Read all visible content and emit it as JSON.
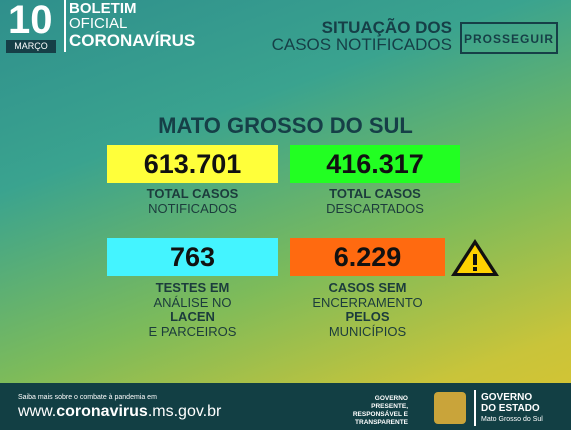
{
  "header": {
    "day": "10",
    "month": "MARÇO",
    "title": [
      "BOLETIM",
      "OFICIAL",
      "CORONAVÍRUS"
    ],
    "situation": [
      "SITUAÇÃO DOS",
      "CASOS NOTIFICADOS"
    ],
    "logo": "PROSSEGUIR"
  },
  "region": "MATO GROSSO DO SUL",
  "cards": [
    {
      "value": "613.701",
      "label": [
        "TOTAL CASOS",
        "NOTIFICADOS"
      ]
    },
    {
      "value": "416.317",
      "label": [
        "TOTAL CASOS",
        "DESCARTADOS"
      ]
    },
    {
      "value": "763",
      "label": [
        "TESTES EM",
        "ANÁLISE NO",
        "LACEN",
        "E PARCEIROS"
      ]
    },
    {
      "value": "6.229",
      "label": [
        "CASOS SEM",
        "ENCERRAMENTO",
        "PELOS",
        "MUNICÍPIOS"
      ]
    }
  ],
  "footer": {
    "note": "Saiba mais sobre o combate à pandemia em",
    "url": [
      "www.",
      "coronavirus",
      ".ms.gov.br"
    ],
    "motto": [
      "GOVERNO",
      "PRESENTE,",
      "RESPONSÁVEL E",
      "TRANSPARENTE"
    ],
    "gov": [
      "GOVERNO",
      "DO ESTADO"
    ],
    "state": "Mato Grosso do Sul"
  }
}
